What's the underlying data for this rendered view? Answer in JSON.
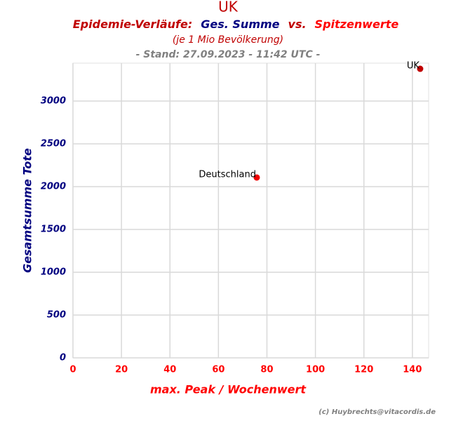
{
  "chart_data": {
    "type": "scatter",
    "heading": "UK",
    "title_parts": [
      {
        "text": "Epidemie-Verläufe:",
        "color": "#c00000"
      },
      {
        "text": "Ges. Summe",
        "color": "#000080"
      },
      {
        "text": "vs.",
        "color": "#c00000"
      },
      {
        "text": "Spitzenwerte",
        "color": "#ff0000"
      }
    ],
    "subtitle": "(je 1 Mio Bevölkerung)",
    "stand": "- Stand: 27.09.2023 - 11:42 UTC -",
    "x_label": "max. Peak / Wochenwert",
    "y_label": "Gesamtsumme Tote",
    "credit": "(c) Huybrechts@vitacordis.de",
    "labels": [
      "Deutschland",
      "UK"
    ],
    "x": [
      75.8,
      143.2
    ],
    "values": [
      2107,
      3377
    ],
    "colors": [
      "#ee0000",
      "#c00000"
    ],
    "xlim": [
      0,
      146.7
    ],
    "ylim": [
      0,
      3443
    ],
    "xticks": [
      0,
      20,
      40,
      60,
      80,
      100,
      120,
      140
    ],
    "yticks": [
      0,
      500,
      1000,
      1500,
      2000,
      2500,
      3000
    ],
    "grid": true
  }
}
